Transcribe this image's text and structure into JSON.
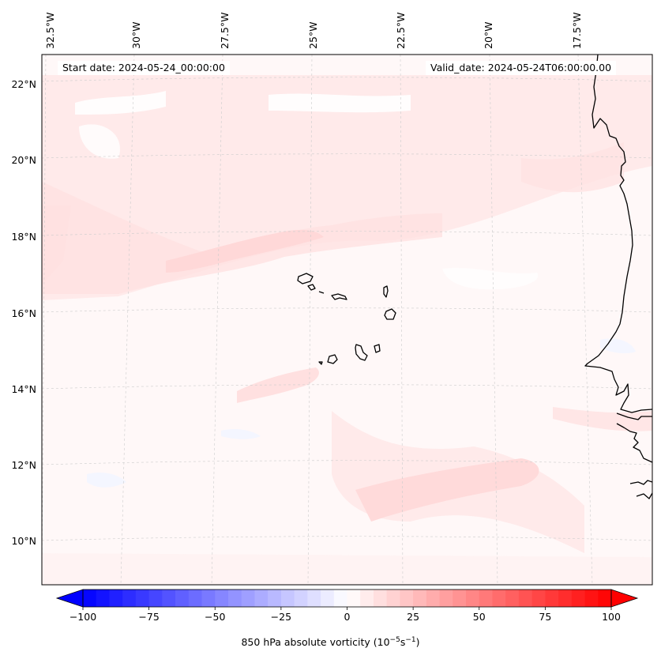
{
  "header": {
    "start_date": "Start date: 2024-05-24_00:00:00",
    "valid_date": "Valid_date: 2024-05-24T06:00:00.00"
  },
  "axes": {
    "lon_labels": [
      "32.5°W",
      "30°W",
      "27.5°W",
      "25°W",
      "22.5°W",
      "20°W",
      "17.5°W"
    ],
    "lat_labels": [
      "22°N",
      "20°N",
      "18°N",
      "16°N",
      "14°N",
      "12°N",
      "10°N"
    ]
  },
  "colorbar": {
    "ticks": [
      "−100",
      "−75",
      "−50",
      "−25",
      "0",
      "25",
      "50",
      "75",
      "100"
    ],
    "label_prefix": "850 hPa absolute vorticity (10",
    "label_exp1": "−5",
    "label_mid": "s",
    "label_exp2": "−1",
    "label_suffix": ")",
    "min": -100,
    "max": 100,
    "step": 5,
    "color_low": "#0000ff",
    "color_mid": "#ffffff",
    "color_high": "#ff0000"
  },
  "colors": {
    "background_field": "#fff6f6",
    "coastline": "#000000",
    "gridline": "#cccccc"
  }
}
